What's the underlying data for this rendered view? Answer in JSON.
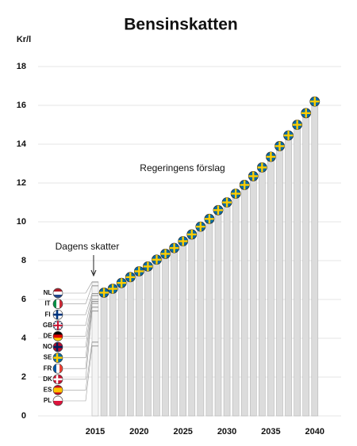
{
  "chart_data": {
    "type": "bar",
    "title": "Bensinskatten",
    "y_label": "Kr/l",
    "ylim": [
      0,
      18
    ],
    "yticks": [
      0,
      2,
      4,
      6,
      8,
      10,
      12,
      14,
      16,
      18
    ],
    "grid": true,
    "xlim": [
      2008.5,
      2043
    ],
    "xticks": [
      2015,
      2020,
      2025,
      2030,
      2035,
      2040
    ],
    "series": [
      {
        "name": "Regeringens förslag",
        "color": "#dcdcdc",
        "x": [
          2016,
          2017,
          2018,
          2019,
          2020,
          2021,
          2022,
          2023,
          2024,
          2025,
          2026,
          2027,
          2028,
          2029,
          2030,
          2031,
          2032,
          2033,
          2034,
          2035,
          2036,
          2037,
          2038,
          2039,
          2040
        ],
        "values": [
          6.35,
          6.55,
          6.85,
          7.15,
          7.45,
          7.7,
          8.05,
          8.35,
          8.65,
          9.0,
          9.35,
          9.75,
          10.15,
          10.6,
          11.0,
          11.45,
          11.9,
          12.35,
          12.8,
          13.35,
          13.9,
          14.45,
          15.0,
          15.6,
          16.2
        ]
      }
    ],
    "current": {
      "label": "Dagens skatter",
      "x": 2015,
      "countries": [
        {
          "code": "NL",
          "value": 6.9,
          "flag": {
            "pattern": "h",
            "colors": [
              "#ae1c28",
              "#ffffff",
              "#21468b"
            ]
          }
        },
        {
          "code": "IT",
          "value": 6.7,
          "flag": {
            "pattern": "v",
            "colors": [
              "#009246",
              "#ffffff",
              "#ce2b37"
            ]
          }
        },
        {
          "code": "FI",
          "value": 6.3,
          "flag": {
            "pattern": "cross",
            "colors": [
              "#ffffff",
              "#003580"
            ]
          }
        },
        {
          "code": "GB",
          "value": 6.2,
          "flag": {
            "pattern": "plus",
            "colors": [
              "#012169",
              "#ffffff",
              "#c8102e"
            ]
          }
        },
        {
          "code": "DE",
          "value": 6.0,
          "flag": {
            "pattern": "h",
            "colors": [
              "#000000",
              "#dd0000",
              "#ffce00"
            ]
          }
        },
        {
          "code": "NO",
          "value": 5.9,
          "flag": {
            "pattern": "cross",
            "colors": [
              "#ba0c2f",
              "#00205b"
            ]
          }
        },
        {
          "code": "SE",
          "value": 5.8,
          "flag": {
            "pattern": "cross",
            "colors": [
              "#006aa7",
              "#fecc00"
            ]
          }
        },
        {
          "code": "FR",
          "value": 5.6,
          "flag": {
            "pattern": "v",
            "colors": [
              "#0055a4",
              "#ffffff",
              "#ef4135"
            ]
          }
        },
        {
          "code": "DK",
          "value": 5.4,
          "flag": {
            "pattern": "cross",
            "colors": [
              "#c8102e",
              "#ffffff"
            ]
          }
        },
        {
          "code": "ES",
          "value": 3.8,
          "flag": {
            "pattern": "h",
            "colors": [
              "#c60b1e",
              "#ffc400",
              "#ffc400",
              "#c60b1e"
            ]
          }
        },
        {
          "code": "PL",
          "value": 3.6,
          "flag": {
            "pattern": "h",
            "colors": [
              "#ffffff",
              "#dc143c"
            ]
          }
        }
      ]
    }
  }
}
